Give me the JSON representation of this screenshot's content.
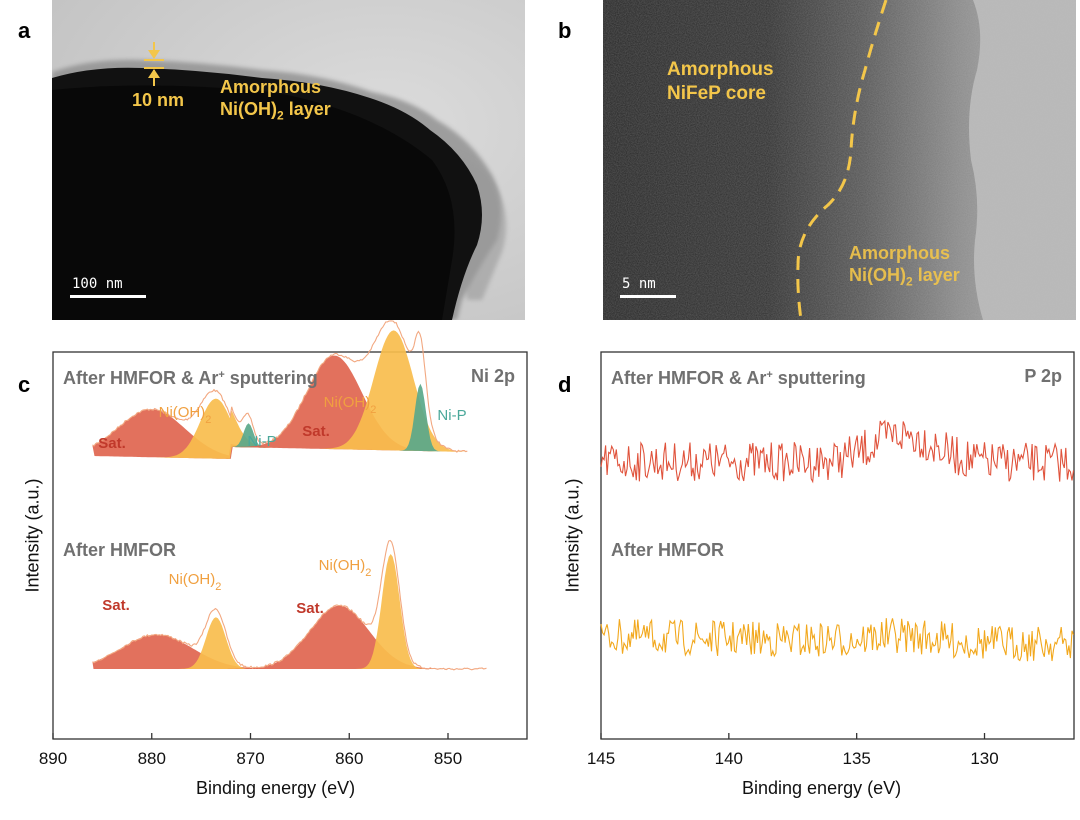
{
  "panels": {
    "a": {
      "label": "a",
      "thickness_label": "10 nm",
      "layer_label_line1": "Amorphous",
      "layer_label_line2": "Ni(OH)",
      "layer_label_sub": "2",
      "layer_label_tail": " layer",
      "scalebar": "100 nm"
    },
    "b": {
      "label": "b",
      "core_label_line1": "Amorphous",
      "core_label_line2": "NiFeP core",
      "layer_label_line1": "Amorphous",
      "layer_label_line2": "Ni(OH)",
      "layer_label_sub": "2",
      "layer_label_tail": " layer",
      "scalebar": "5 nm"
    },
    "c": {
      "label": "c"
    },
    "d": {
      "label": "d"
    }
  },
  "colors": {
    "accent_yellow": "#f3c64a",
    "sat_red": "#e0654f",
    "nioh_orange": "#f9bd4d",
    "nip_green": "#5aa88a",
    "label_red": "#c0392b",
    "label_orange": "#f0a040",
    "label_teal": "#4aa89a",
    "header_gray": "#707070",
    "trace_red": "#e0533c",
    "trace_orange": "#f2a81d"
  },
  "chart_data": [
    {
      "type": "line",
      "panel": "c",
      "xlabel": "Binding energy (eV)",
      "ylabel": "Intensity (a.u.)",
      "xlim": [
        890,
        842
      ],
      "x_reversed": true,
      "xticks": [
        890,
        880,
        870,
        860,
        850
      ],
      "corner_label": "Ni 2p",
      "spectra": [
        {
          "title": "After HMFOR & Ar",
          "title_sup": "+",
          "title_tail": " sputtering",
          "x_range": [
            886,
            848
          ],
          "components": [
            {
              "label": "Sat.",
              "center": 880,
              "height": 0.4,
              "color": "sat_red"
            },
            {
              "label": "Ni(OH)",
              "sub": "2",
              "center": 873.5,
              "height": 0.5,
              "color": "nioh_orange"
            },
            {
              "label": "Ni-P",
              "center": 870.2,
              "height": 0.2,
              "color": "nip_green"
            },
            {
              "label": "Sat.",
              "center": 861.5,
              "height": 0.78,
              "color": "sat_red"
            },
            {
              "label": "Ni(OH)",
              "sub": "2",
              "center": 855.5,
              "height": 1.0,
              "color": "nioh_orange"
            },
            {
              "label": "Ni-P",
              "center": 852.8,
              "height": 0.56,
              "color": "nip_green"
            }
          ]
        },
        {
          "title": "After HMFOR",
          "x_range": [
            886,
            846
          ],
          "components": [
            {
              "label": "Sat.",
              "center": 879.5,
              "height": 0.3,
              "color": "sat_red"
            },
            {
              "label": "Ni(OH)",
              "sub": "2",
              "center": 873.5,
              "height": 0.45,
              "color": "nioh_orange"
            },
            {
              "label": "Sat.",
              "center": 861.0,
              "height": 0.55,
              "color": "sat_red"
            },
            {
              "label": "Ni(OH)",
              "sub": "2",
              "center": 855.8,
              "height": 1.0,
              "color": "nioh_orange"
            }
          ]
        }
      ]
    },
    {
      "type": "line",
      "panel": "d",
      "xlabel": "Binding energy (eV)",
      "ylabel": "Intensity (a.u.)",
      "xlim": [
        145,
        126.5
      ],
      "x_reversed": true,
      "xticks": [
        145,
        140,
        135,
        130
      ],
      "corner_label": "P 2p",
      "series": [
        {
          "name": "After HMFOR & Ar",
          "name_sup": "+",
          "name_tail": " sputtering",
          "color": "trace_red",
          "feature": "weak broad bump near 133 eV"
        },
        {
          "name": "After HMFOR",
          "color": "trace_orange",
          "feature": "noise only"
        }
      ]
    }
  ]
}
